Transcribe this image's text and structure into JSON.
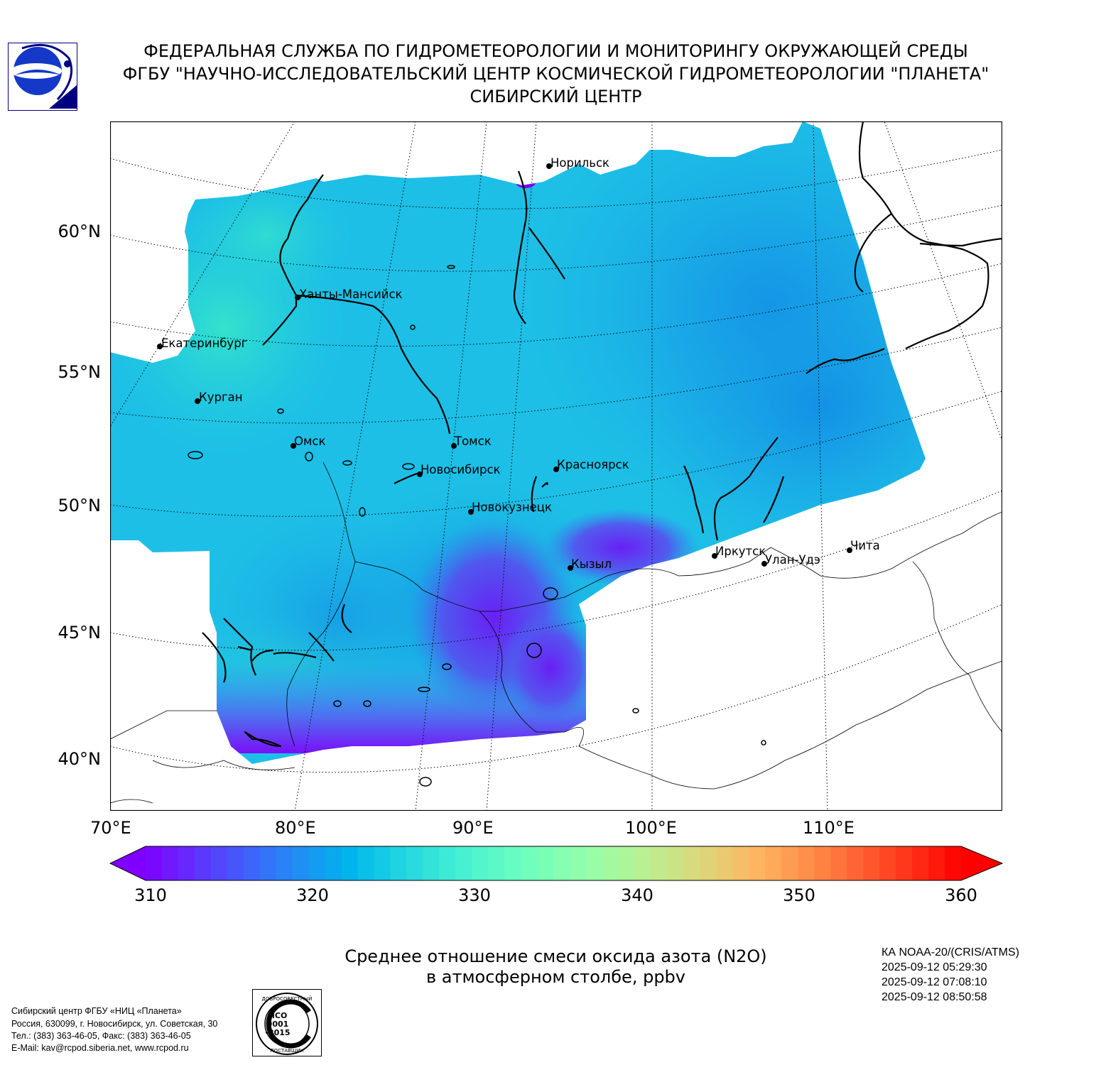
{
  "header": {
    "line1": "ФЕДЕРАЛЬНАЯ СЛУЖБА ПО ГИДРОМЕТЕОРОЛОГИИ И МОНИТОРИНГУ ОКРУЖАЮЩЕЙ СРЕДЫ",
    "line2": "ФГБУ \"НАУЧНО-ИССЛЕДОВАТЕЛЬСКИЙ ЦЕНТР КОСМИЧЕСКОЙ ГИДРОМЕТЕОРОЛОГИИ \"ПЛАНЕТА\"",
    "line3": "СИБИРСКИЙ ЦЕНТР"
  },
  "map": {
    "lat_labels": [
      "60°N",
      "55°N",
      "50°N",
      "45°N",
      "40°N"
    ],
    "lon_labels": [
      "70°E",
      "80°E",
      "90°E",
      "100°E",
      "110°E"
    ],
    "cities": [
      {
        "name": "Норильск"
      },
      {
        "name": "Ханты-Мансийск"
      },
      {
        "name": "Екатеринбург"
      },
      {
        "name": "Курган"
      },
      {
        "name": "Омск"
      },
      {
        "name": "Томск"
      },
      {
        "name": "Новосибирск"
      },
      {
        "name": "Красноярск"
      },
      {
        "name": "Новокузнецк"
      },
      {
        "name": "Кызыл"
      },
      {
        "name": "Иркутск"
      },
      {
        "name": "Улан-Удэ"
      },
      {
        "name": "Чита"
      }
    ],
    "colors": {
      "low": "#7a00f8",
      "mid": "#19c3e6",
      "high": "#ff0000",
      "deep_blue": "#1f9bea",
      "teal": "#2fdcd0"
    }
  },
  "colorbar": {
    "min": 310,
    "max": 360,
    "ticks": [
      "310",
      "320",
      "330",
      "340",
      "350",
      "360"
    ],
    "extend": "both",
    "colormap": "rainbow"
  },
  "title": {
    "line1": "Среднее отношение смеси оксида азота (N2O)",
    "line2": "в атмосферном столбе, ppbv"
  },
  "satellite": {
    "name": "КА NOAA-20/(CRIS/ATMS)",
    "times": [
      "2025-09-12 05:29:30",
      "2025-09-12 07:08:10",
      "2025-09-12 08:50:58"
    ]
  },
  "footer": {
    "lines": [
      "Сибирский центр ФГБУ «НИЦ «Планета»",
      "Россия, 630099, г. Новосибирск, ул. Советская, 30",
      "Тел.: (383) 363-46-05, Факс: (383) 363-46-05",
      "E-Mail: kav@rcpod.siberia.net, www.rcpod.ru"
    ],
    "iso": {
      "top": "ДОБРОСОВЕСТНЫЙ",
      "bottom": "ПОСТАВЩИК",
      "l1": "ИСО",
      "l2": "9001",
      "l3": "-2015"
    }
  }
}
